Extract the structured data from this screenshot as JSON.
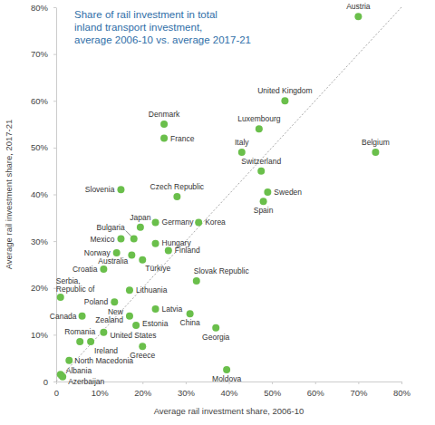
{
  "chart_data": {
    "type": "scatter",
    "title": [
      "Share of rail investment in total",
      "inland transport investment,",
      "average 2006-10 vs. average 2017-21"
    ],
    "x_label": "Average rail investment share, 2006-10",
    "y_label": "Average rail investment share, 2017-21",
    "labels": [
      "Austria",
      "United Kingdom",
      "Luxembourg",
      "Italy",
      "Switzerland",
      "Sweden",
      "Spain",
      "Belgium",
      "Denmark",
      "France",
      "Czech Republic",
      "Korea",
      "Slovenia",
      "Japan",
      "Germany",
      "Bulgaria",
      "Mexico",
      "Hungary",
      "Norway",
      "Finland",
      "Australia",
      "Türkiye",
      "Croatia",
      "Serbia, Republic of",
      "Slovak Republic",
      "Lithuania",
      "Poland",
      "Latvia",
      "China",
      "Canada",
      "New Zealand",
      "Estonia",
      "Georgia",
      "Romania",
      "United States",
      "Ireland",
      "Greece",
      "North Macedonia",
      "Moldova",
      "Albania",
      "Azerbaijan"
    ],
    "x": [
      70,
      53,
      47,
      43,
      47.5,
      49,
      48,
      74,
      25,
      25,
      28,
      33,
      15,
      19.5,
      23,
      18,
      15,
      23,
      14,
      26,
      17.5,
      20,
      11,
      1,
      32.5,
      17,
      13.5,
      23,
      31,
      6,
      17,
      18.5,
      37,
      5.5,
      11,
      8,
      20,
      3,
      39.5,
      1,
      1.5
    ],
    "values": [
      78,
      60,
      54,
      49,
      45,
      40.5,
      38.5,
      49,
      55,
      52,
      39.5,
      34,
      41,
      33,
      34,
      30.5,
      30.5,
      29.5,
      27.5,
      28,
      27,
      26,
      24,
      18,
      21.5,
      19.5,
      17,
      15.5,
      14.5,
      14,
      14,
      12,
      11.5,
      8.5,
      10.5,
      8.5,
      7.5,
      4.5,
      2.5,
      1.5,
      1
    ],
    "color": "#6abf4b",
    "xlim": [
      0,
      80
    ],
    "ylim": [
      0,
      80
    ],
    "xticks": [
      0,
      {
        "value": 10,
        "label": "10%"
      },
      {
        "value": 20,
        "label": "20%"
      },
      {
        "value": 30,
        "label": "30%"
      },
      {
        "value": 40,
        "label": "40%"
      },
      {
        "value": 50,
        "label": "50%"
      },
      {
        "value": 60,
        "label": "60%"
      },
      {
        "value": 70,
        "label": "70%"
      },
      {
        "value": 80,
        "label": "80%"
      }
    ],
    "yticks": [
      0,
      {
        "value": 10,
        "label": "10%"
      },
      {
        "value": 20,
        "label": "20%"
      },
      {
        "value": 30,
        "label": "30%"
      },
      {
        "value": 40,
        "label": "40%"
      },
      {
        "value": 50,
        "label": "50%"
      },
      {
        "value": 60,
        "label": "60%"
      },
      {
        "value": 70,
        "label": "70%"
      },
      {
        "value": 80,
        "label": "80%"
      }
    ],
    "grid": false
  }
}
